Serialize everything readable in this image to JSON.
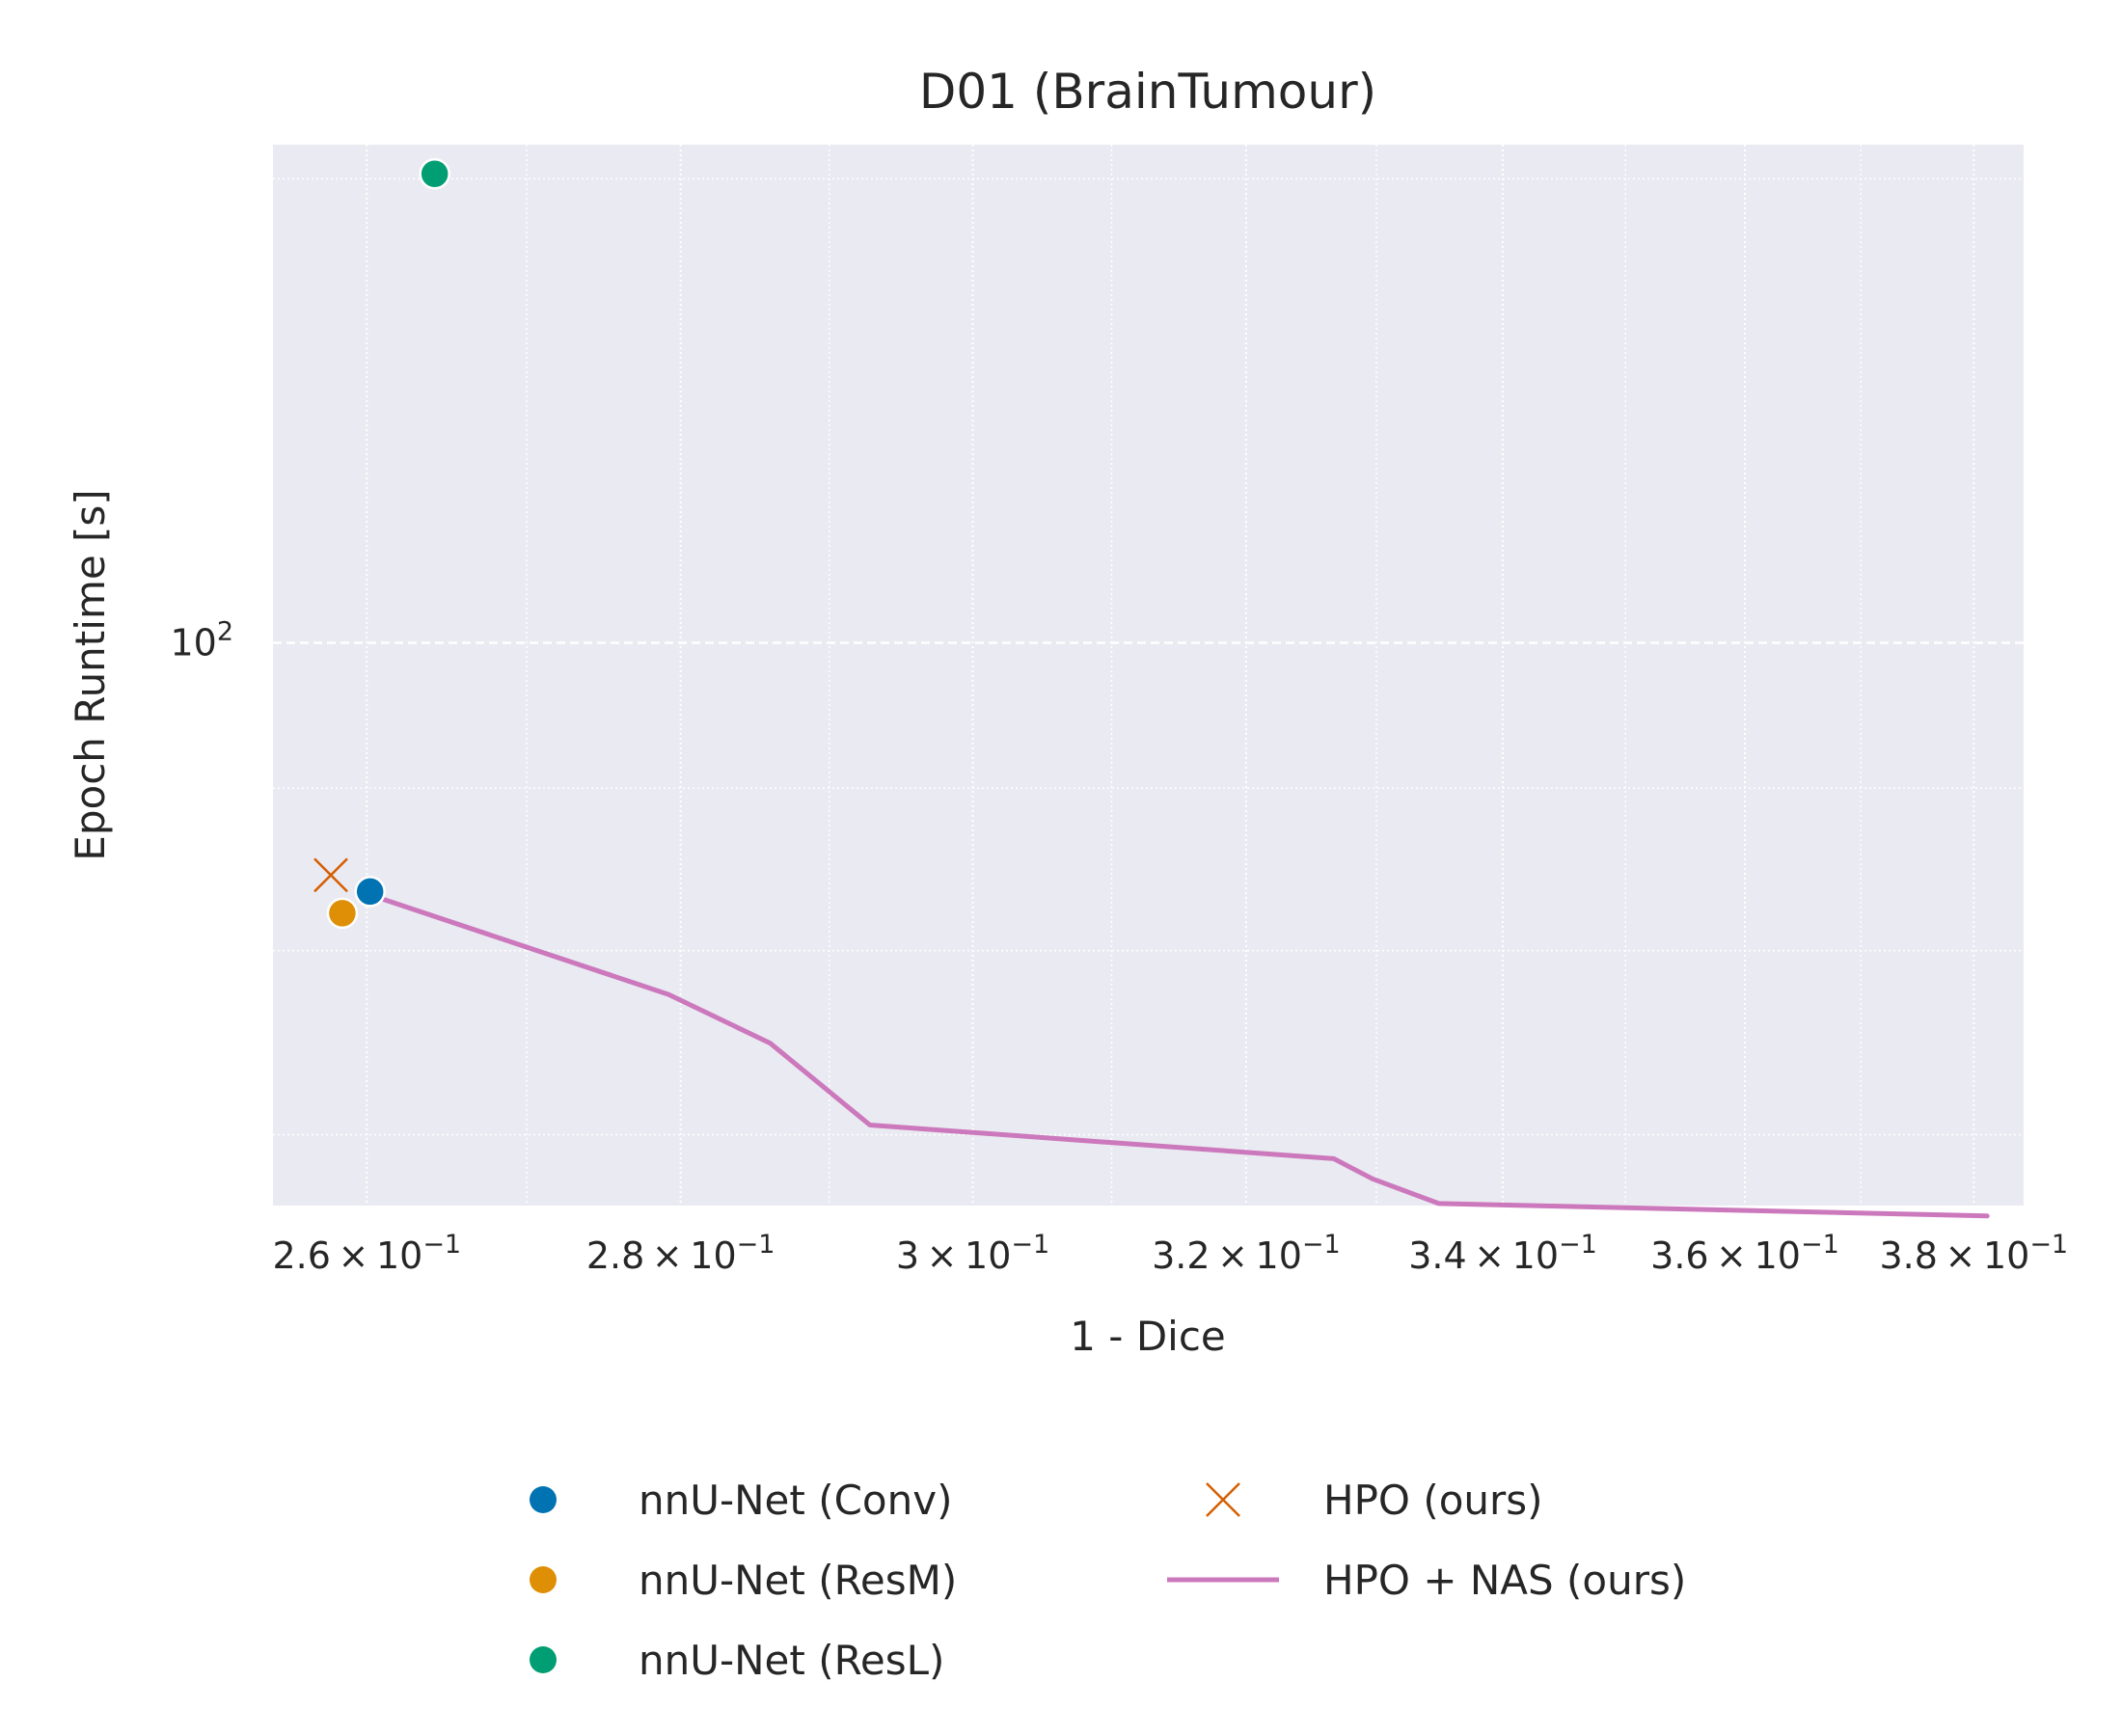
{
  "chart_data": {
    "type": "scatter",
    "title": "D01 (BrainTumour)",
    "xlabel": "1 - Dice",
    "ylabel": "Epoch Runtime [s]",
    "xscale": "log",
    "yscale": "log",
    "xlim": [
      0.2543,
      0.3845
    ],
    "ylim": [
      66.5,
      143.5
    ],
    "x_ticks": [
      {
        "value": 0.26,
        "mantissa": "2.6",
        "exp": "−1"
      },
      {
        "value": 0.28,
        "mantissa": "2.8",
        "exp": "−1"
      },
      {
        "value": 0.3,
        "mantissa": "3",
        "exp": "−1"
      },
      {
        "value": 0.32,
        "mantissa": "3.2",
        "exp": "−1"
      },
      {
        "value": 0.34,
        "mantissa": "3.4",
        "exp": "−1"
      },
      {
        "value": 0.36,
        "mantissa": "3.6",
        "exp": "−1"
      },
      {
        "value": 0.38,
        "mantissa": "3.8",
        "exp": "−1"
      }
    ],
    "y_major_ticks": [
      {
        "value": 100,
        "base": "10",
        "exp": "2"
      }
    ],
    "y_minor_ticks": [
      70,
      80,
      90,
      140
    ],
    "x_minor_ticks": [
      0.27,
      0.29,
      0.31,
      0.33,
      0.35,
      0.37
    ],
    "grid": true,
    "legend_placement": "bottom, outside, two columns",
    "series": [
      {
        "name": "nnU-Net (Conv)",
        "kind": "point",
        "marker": "circle",
        "color": "#0173b2",
        "points": [
          {
            "x": 0.2602,
            "y": 83.5
          }
        ]
      },
      {
        "name": "nnU-Net (ResM)",
        "kind": "point",
        "marker": "circle",
        "color": "#de8f05",
        "points": [
          {
            "x": 0.2585,
            "y": 82.2
          }
        ]
      },
      {
        "name": "nnU-Net (ResL)",
        "kind": "point",
        "marker": "circle",
        "color": "#029e73",
        "points": [
          {
            "x": 0.2642,
            "y": 140.5
          }
        ]
      },
      {
        "name": "HPO (ours)",
        "kind": "point",
        "marker": "x",
        "color": "#d55e00",
        "points": [
          {
            "x": 0.2578,
            "y": 84.5
          }
        ]
      },
      {
        "name": "HPO + NAS (ours)",
        "kind": "line",
        "color": "#cc78bc",
        "points": [
          {
            "x": 0.2602,
            "y": 83.3
          },
          {
            "x": 0.2792,
            "y": 77.5
          },
          {
            "x": 0.286,
            "y": 74.8
          },
          {
            "x": 0.2928,
            "y": 70.5
          },
          {
            "x": 0.3267,
            "y": 68.8
          },
          {
            "x": 0.3297,
            "y": 67.8
          },
          {
            "x": 0.3349,
            "y": 66.6
          },
          {
            "x": 0.3812,
            "y": 66.0
          }
        ]
      }
    ]
  }
}
